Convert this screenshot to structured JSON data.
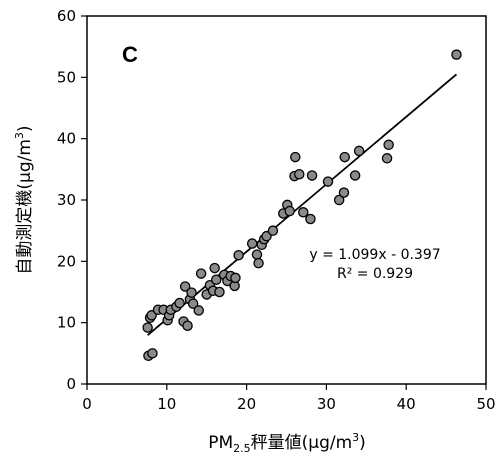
{
  "chart_data": {
    "type": "scatter",
    "panel_label": "C",
    "xlabel": {
      "main": "PM",
      "sub": "2.5",
      "rest": "秤量値",
      "unit_prefix": "(μg/m",
      "unit_sup": "3",
      "unit_suffix": ")"
    },
    "ylabel": {
      "main": "自動測定機",
      "unit_prefix": "(μg/m",
      "unit_sup": "3",
      "unit_suffix": ")"
    },
    "xlim": [
      0,
      50
    ],
    "ylim": [
      0,
      60
    ],
    "xticks": [
      "0",
      "10",
      "20",
      "30",
      "40",
      "50"
    ],
    "yticks": [
      "0",
      "10",
      "20",
      "30",
      "40",
      "50",
      "60"
    ],
    "grid": false,
    "regression": {
      "slope": 1.099,
      "intercept": -0.397,
      "x_range": [
        7.6,
        46.3
      ]
    },
    "annotations": {
      "equation": "y = 1.099x - 0.397",
      "r2": "R² = 0.929"
    },
    "colors": {
      "marker_fill": "#8a8a8a",
      "marker_stroke": "#000000",
      "line": "#000000"
    },
    "points": [
      [
        7.7,
        4.6
      ],
      [
        8.2,
        5.0
      ],
      [
        7.6,
        9.2
      ],
      [
        7.9,
        10.8
      ],
      [
        8.1,
        11.2
      ],
      [
        8.9,
        12.1
      ],
      [
        9.6,
        12.1
      ],
      [
        10.1,
        10.4
      ],
      [
        10.3,
        11.2
      ],
      [
        10.5,
        12.1
      ],
      [
        11.2,
        12.6
      ],
      [
        11.6,
        13.2
      ],
      [
        12.1,
        10.2
      ],
      [
        12.3,
        15.9
      ],
      [
        12.6,
        9.5
      ],
      [
        12.9,
        13.8
      ],
      [
        13.1,
        14.9
      ],
      [
        13.3,
        13.1
      ],
      [
        14.0,
        12.0
      ],
      [
        14.3,
        18.0
      ],
      [
        15.0,
        14.6
      ],
      [
        15.4,
        16.1
      ],
      [
        15.8,
        15.2
      ],
      [
        16.0,
        18.9
      ],
      [
        16.2,
        17.0
      ],
      [
        16.6,
        15.0
      ],
      [
        17.2,
        17.8
      ],
      [
        17.6,
        16.8
      ],
      [
        18.0,
        17.6
      ],
      [
        18.5,
        16.0
      ],
      [
        18.6,
        17.3
      ],
      [
        19.0,
        21.0
      ],
      [
        20.7,
        22.9
      ],
      [
        21.3,
        21.1
      ],
      [
        21.5,
        19.7
      ],
      [
        21.9,
        22.7
      ],
      [
        22.2,
        23.6
      ],
      [
        22.5,
        24.1
      ],
      [
        23.3,
        25.0
      ],
      [
        24.6,
        27.8
      ],
      [
        25.1,
        29.2
      ],
      [
        25.4,
        28.2
      ],
      [
        26.0,
        33.9
      ],
      [
        26.1,
        37.0
      ],
      [
        26.6,
        34.2
      ],
      [
        27.1,
        28.0
      ],
      [
        28.0,
        26.9
      ],
      [
        28.2,
        34.0
      ],
      [
        30.2,
        33.0
      ],
      [
        31.6,
        30.0
      ],
      [
        32.2,
        31.2
      ],
      [
        32.3,
        37.0
      ],
      [
        33.6,
        34.0
      ],
      [
        34.1,
        38.0
      ],
      [
        37.6,
        36.8
      ],
      [
        37.8,
        39.0
      ],
      [
        46.3,
        53.7
      ]
    ]
  }
}
